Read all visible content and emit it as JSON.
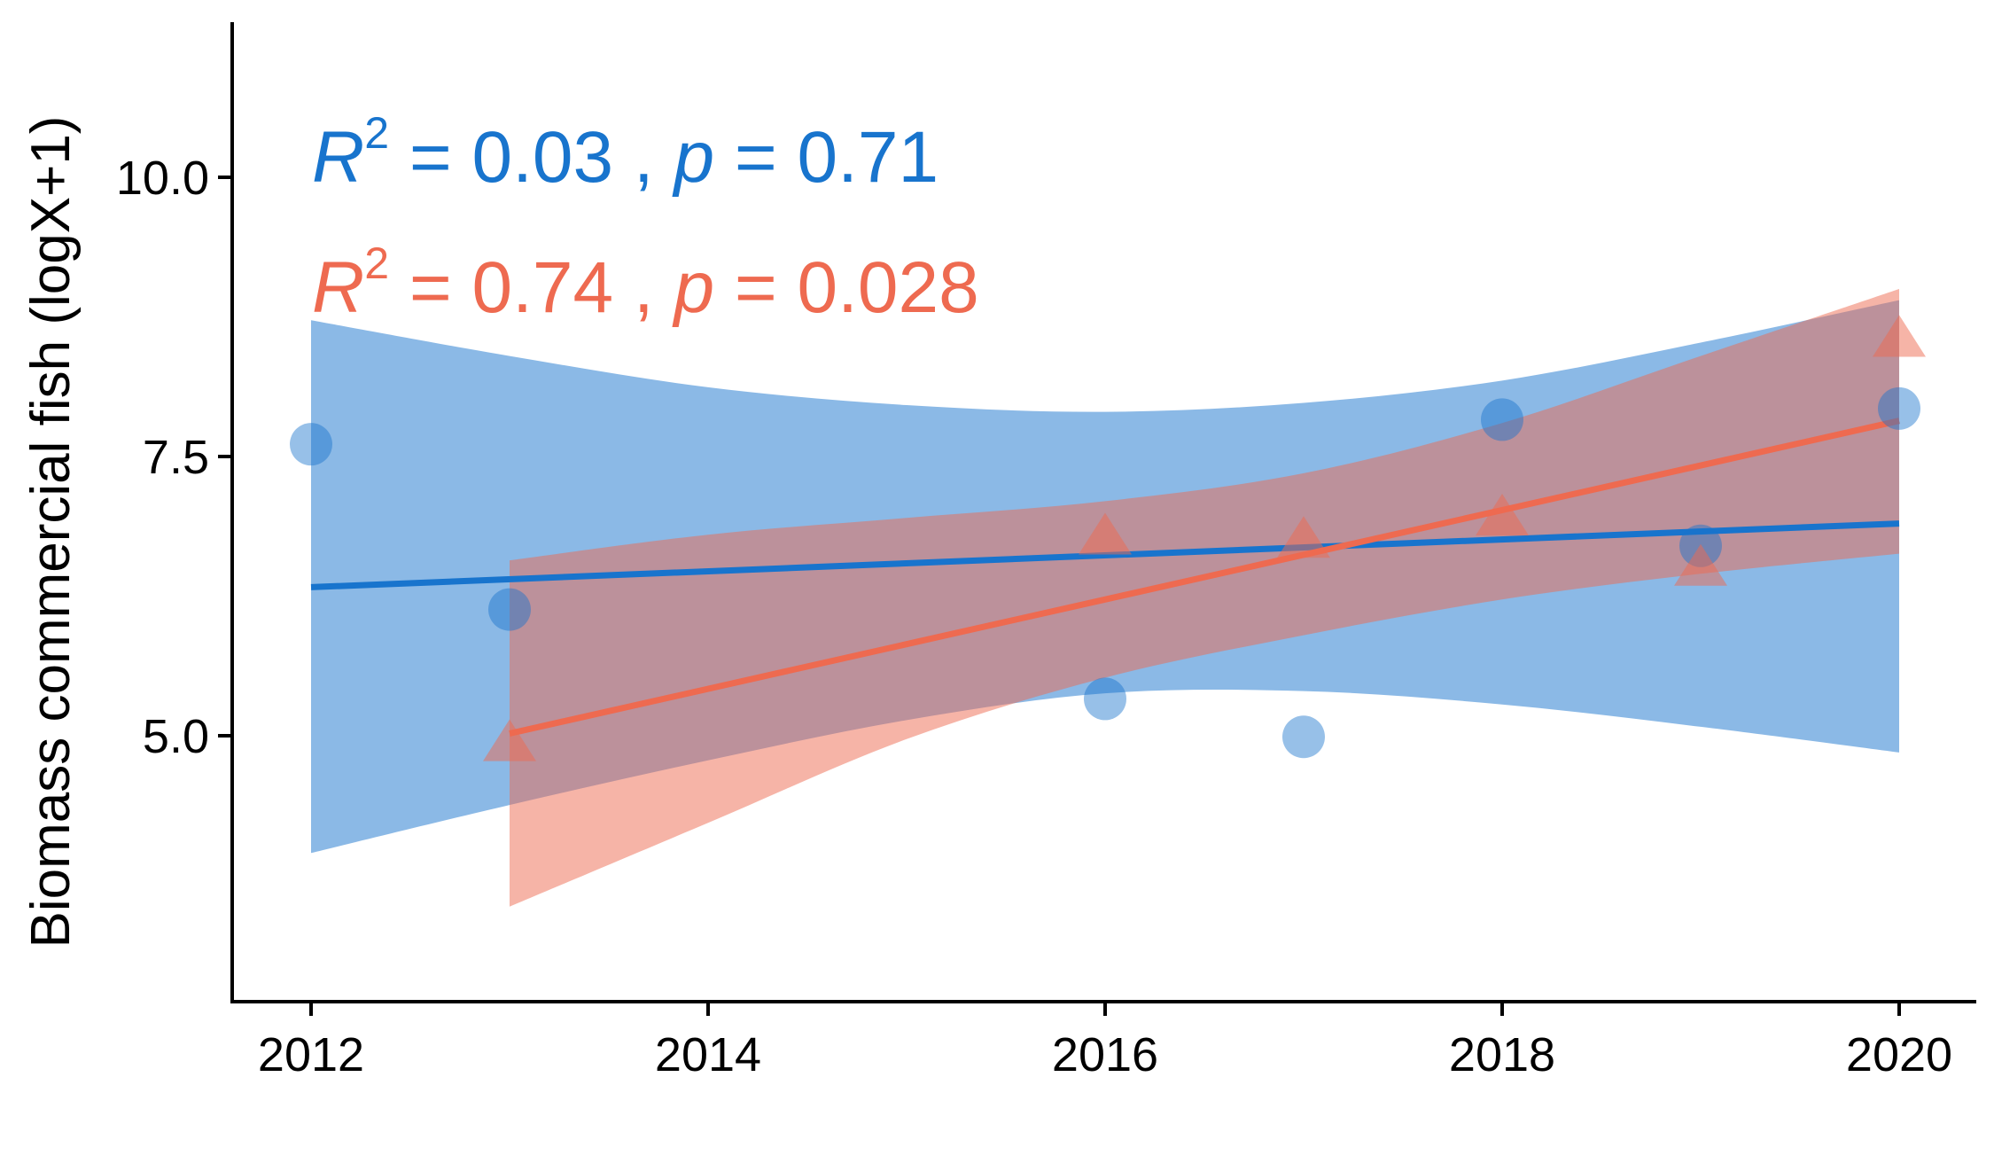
{
  "chart_data": {
    "type": "scatter",
    "xlabel": "",
    "ylabel": "Biomass commercial fish (logX+1)",
    "xlim": [
      2011.8,
      2020.2
    ],
    "ylim": [
      2.6,
      11.4
    ],
    "x_ticks": [
      "2012",
      "2014",
      "2016",
      "2018",
      "2020"
    ],
    "y_ticks": [
      "5.0",
      "7.5",
      "10.0"
    ],
    "grid": false,
    "series": [
      {
        "marker": "circle",
        "color": "#1874CD",
        "points": [
          {
            "x": 2012,
            "y": 7.61
          },
          {
            "x": 2013,
            "y": 6.13
          },
          {
            "x": 2016,
            "y": 5.33
          },
          {
            "x": 2017,
            "y": 4.99
          },
          {
            "x": 2018,
            "y": 7.83
          },
          {
            "x": 2019,
            "y": 6.7
          },
          {
            "x": 2020,
            "y": 7.93
          }
        ],
        "fit": {
          "x": [
            2012,
            2020
          ],
          "y": [
            6.33,
            6.9
          ]
        },
        "ci": {
          "x": [
            2012,
            2013,
            2014,
            2015,
            2016,
            2017,
            2018,
            2019,
            2020
          ],
          "upper": [
            8.72,
            8.4,
            8.12,
            7.96,
            7.9,
            7.98,
            8.18,
            8.52,
            8.9
          ],
          "lower": [
            3.95,
            4.38,
            4.78,
            5.14,
            5.38,
            5.4,
            5.28,
            5.08,
            4.85
          ]
        },
        "stat": {
          "r2": "0.03",
          "p": "0.71"
        }
      },
      {
        "marker": "triangle",
        "color": "#EE6A50",
        "points": [
          {
            "x": 2013,
            "y": 4.93
          },
          {
            "x": 2016,
            "y": 6.78
          },
          {
            "x": 2017,
            "y": 6.75
          },
          {
            "x": 2018,
            "y": 6.95
          },
          {
            "x": 2019,
            "y": 6.5
          },
          {
            "x": 2020,
            "y": 8.55
          }
        ],
        "fit": {
          "x": [
            2013,
            2020
          ],
          "y": [
            5.02,
            7.82
          ]
        },
        "ci": {
          "x": [
            2013,
            2014,
            2015,
            2016,
            2017,
            2018,
            2019,
            2020
          ],
          "upper": [
            6.57,
            6.8,
            6.95,
            7.1,
            7.35,
            7.8,
            8.4,
            9.0
          ],
          "lower": [
            3.47,
            4.22,
            4.97,
            5.52,
            5.9,
            6.22,
            6.45,
            6.63
          ]
        },
        "stat": {
          "r2": "0.74",
          "p": "0.028"
        }
      }
    ]
  },
  "annotations": {
    "r_symbol": "R",
    "sq_symbol": "2",
    "p_symbol": "p",
    "sep": " , ",
    "eq": " = "
  }
}
